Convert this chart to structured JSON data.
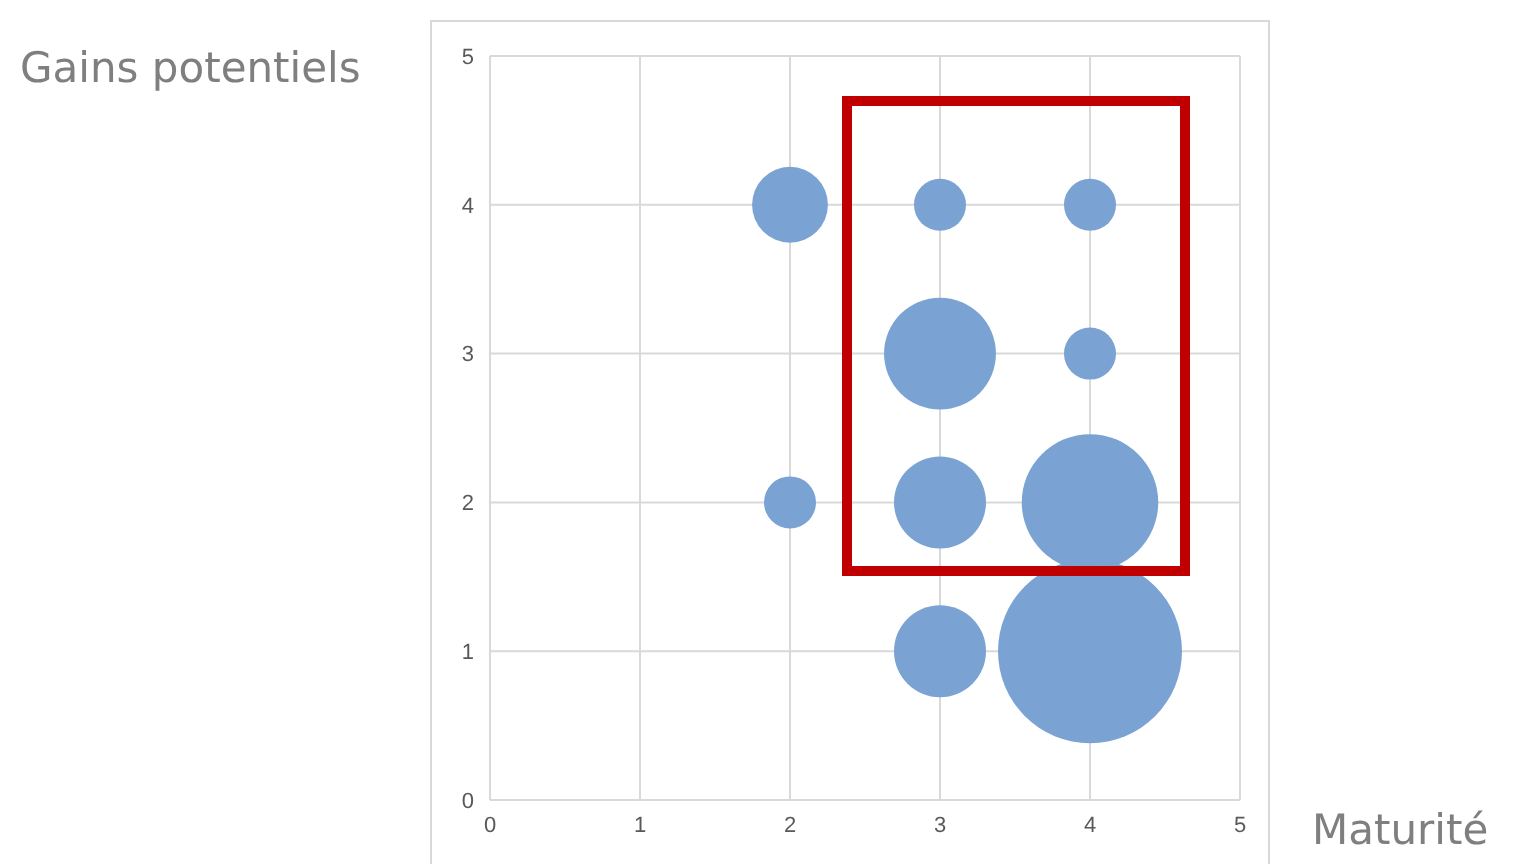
{
  "chart_data": {
    "type": "bubble",
    "xlabel": "Maturité",
    "ylabel": "Gains potentiels",
    "x": [
      2,
      3,
      4,
      3,
      4,
      2,
      3,
      4,
      3,
      4
    ],
    "values": [
      4,
      4,
      4,
      3,
      3,
      2,
      2,
      2,
      1,
      1
    ],
    "sizes": [
      0.17,
      0.08,
      0.08,
      0.37,
      0.08,
      0.08,
      0.25,
      0.55,
      0.25,
      1
    ],
    "color": "#7aa3d4",
    "xlim": [
      0,
      5
    ],
    "xticks": [
      0,
      1,
      2,
      3,
      4,
      5
    ],
    "ylim": [
      0,
      5
    ],
    "yticks": [
      0,
      1,
      2,
      3,
      4,
      5
    ],
    "grid": true
  }
}
